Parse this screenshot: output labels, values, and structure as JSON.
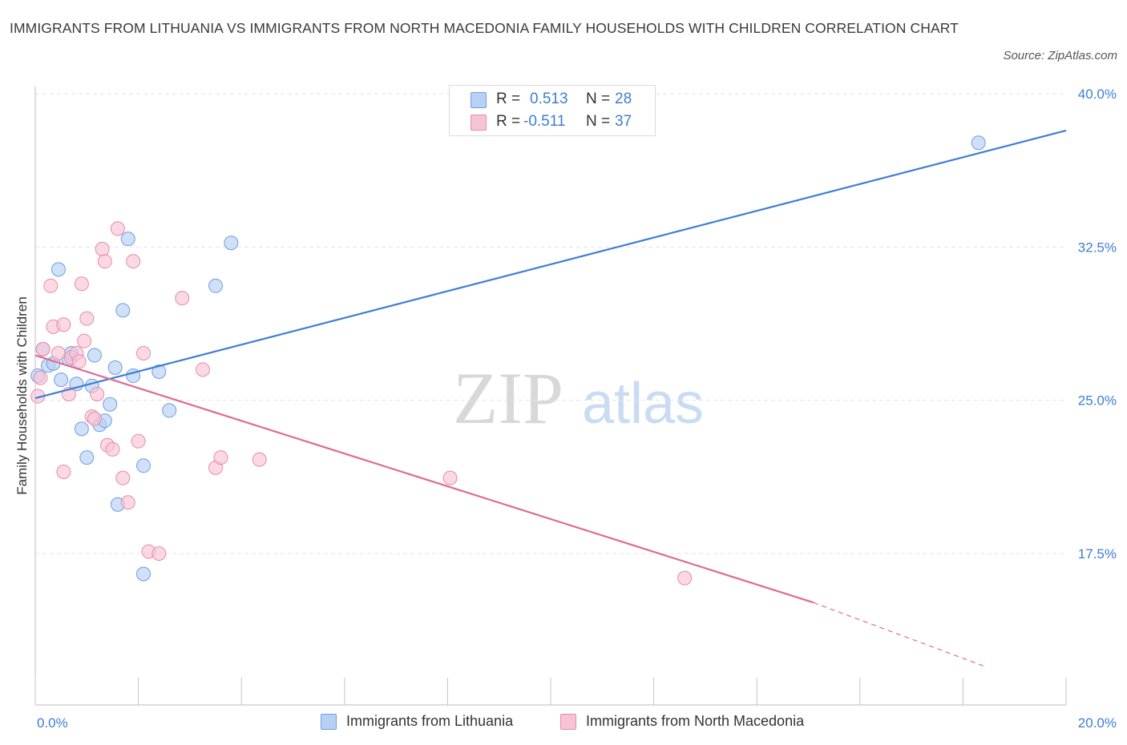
{
  "title": "IMMIGRANTS FROM LITHUANIA VS IMMIGRANTS FROM NORTH MACEDONIA FAMILY HOUSEHOLDS WITH CHILDREN CORRELATION CHART",
  "source": "Source: ZipAtlas.com",
  "watermark": {
    "zip": "ZIP",
    "atlas": "atlas"
  },
  "colors": {
    "blue": "#3d7dd6",
    "blue_fill": "#b7d0f3",
    "pink": "#e06a96",
    "pink_fill": "#f7c4d5"
  },
  "legend": {
    "rows": [
      {
        "r_label": "R =",
        "r_value": "0.513",
        "n_label": "N =",
        "n_value": "28"
      },
      {
        "r_label": "R =",
        "r_value": "-0.511",
        "n_label": "N =",
        "n_value": "37"
      }
    ]
  },
  "chart_data": {
    "type": "scatter",
    "title": "IMMIGRANTS FROM LITHUANIA VS IMMIGRANTS FROM NORTH MACEDONIA FAMILY HOUSEHOLDS WITH CHILDREN CORRELATION CHART",
    "xlabel": "",
    "ylabel": "Family Households with Children",
    "xlim": [
      0,
      20
    ],
    "ylim": [
      12,
      42
    ],
    "x_tick_labels": [
      "0.0%",
      "20.0%"
    ],
    "y_ticks": [
      17.5,
      25.0,
      32.5,
      40.0
    ],
    "y_tick_labels": [
      "17.5%",
      "25.0%",
      "32.5%",
      "40.0%"
    ],
    "grid": "horizontal dashed",
    "legend_position": "top-center",
    "series": [
      {
        "name": "Immigrants from Lithuania",
        "color": "#3d7dd6",
        "r": 0.513,
        "n": 28,
        "trend": {
          "x": [
            0,
            20
          ],
          "y": [
            25.1,
            38.2
          ]
        },
        "points": [
          [
            0.15,
            27.5
          ],
          [
            0.25,
            26.7
          ],
          [
            0.35,
            26.8
          ],
          [
            0.45,
            31.4
          ],
          [
            0.5,
            26.0
          ],
          [
            0.65,
            27.0
          ],
          [
            0.7,
            27.3
          ],
          [
            0.8,
            25.8
          ],
          [
            0.9,
            23.6
          ],
          [
            1.0,
            22.2
          ],
          [
            1.1,
            25.7
          ],
          [
            1.15,
            27.2
          ],
          [
            1.25,
            23.8
          ],
          [
            1.35,
            24.0
          ],
          [
            1.45,
            24.8
          ],
          [
            1.55,
            26.6
          ],
          [
            1.6,
            19.9
          ],
          [
            1.7,
            29.4
          ],
          [
            1.8,
            32.9
          ],
          [
            1.9,
            26.2
          ],
          [
            2.1,
            21.8
          ],
          [
            2.1,
            16.5
          ],
          [
            2.4,
            26.4
          ],
          [
            2.6,
            24.5
          ],
          [
            3.5,
            30.6
          ],
          [
            3.8,
            32.7
          ],
          [
            18.3,
            37.6
          ],
          [
            0.05,
            26.2
          ]
        ]
      },
      {
        "name": "Immigrants from North Macedonia",
        "color": "#e06a96",
        "r": -0.511,
        "n": 37,
        "trend": {
          "x": [
            0,
            15.1,
            18.4
          ],
          "y": [
            27.2,
            15.1,
            12.0
          ],
          "dashed_from_x": 15.1
        },
        "points": [
          [
            0.05,
            25.2
          ],
          [
            0.1,
            26.1
          ],
          [
            0.15,
            27.5
          ],
          [
            0.3,
            30.6
          ],
          [
            0.35,
            28.6
          ],
          [
            0.45,
            27.3
          ],
          [
            0.55,
            28.7
          ],
          [
            0.55,
            21.5
          ],
          [
            0.65,
            25.3
          ],
          [
            0.7,
            27.1
          ],
          [
            0.8,
            27.3
          ],
          [
            0.85,
            26.9
          ],
          [
            0.9,
            30.7
          ],
          [
            0.95,
            27.9
          ],
          [
            1.0,
            29.0
          ],
          [
            1.1,
            24.2
          ],
          [
            1.15,
            24.1
          ],
          [
            1.2,
            25.3
          ],
          [
            1.3,
            32.4
          ],
          [
            1.35,
            31.8
          ],
          [
            1.4,
            22.8
          ],
          [
            1.5,
            22.6
          ],
          [
            1.6,
            33.4
          ],
          [
            1.7,
            21.2
          ],
          [
            1.8,
            20.0
          ],
          [
            1.9,
            31.8
          ],
          [
            2.0,
            23.0
          ],
          [
            2.1,
            27.3
          ],
          [
            2.2,
            17.6
          ],
          [
            2.4,
            17.5
          ],
          [
            2.85,
            30.0
          ],
          [
            3.25,
            26.5
          ],
          [
            3.5,
            21.7
          ],
          [
            3.6,
            22.2
          ],
          [
            4.35,
            22.1
          ],
          [
            8.05,
            21.2
          ],
          [
            12.6,
            16.3
          ]
        ]
      }
    ]
  }
}
